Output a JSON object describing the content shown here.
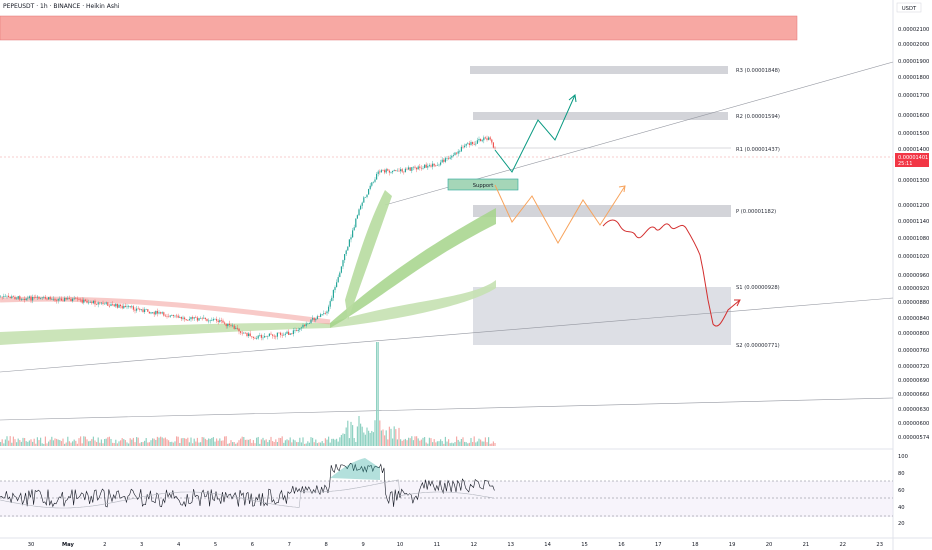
{
  "title": "PEPEUSDT · 1h · BINANCE · Heikin Ashi",
  "currency": "USDT",
  "price_tag": {
    "price": "0.00001401",
    "timer": "25:11"
  },
  "support_label": "Support",
  "colors": {
    "bull": "#26a69a",
    "bear": "#ef5350",
    "band": "#b7dba0",
    "supply": "#f7a8a3"
  },
  "chart_data": {
    "type": "candlestick",
    "y_ticks": [
      "0.00002100",
      "0.00002000",
      "0.00001900",
      "0.00001800",
      "0.00001700",
      "0.00001600",
      "0.00001500",
      "0.00001400",
      "0.00001300",
      "0.00001200",
      "0.00001140",
      "0.00001080",
      "0.00001020",
      "0.00000960",
      "0.00000920",
      "0.00000880",
      "0.00000840",
      "0.00000800",
      "0.00000760",
      "0.00000720",
      "0.00000690",
      "0.00000660",
      "0.00000630",
      "0.00000600",
      "0.00000574"
    ],
    "x_ticks": [
      "30",
      "May",
      "2",
      "3",
      "4",
      "5",
      "6",
      "7",
      "8",
      "9",
      "10",
      "11",
      "12",
      "13",
      "14",
      "15",
      "16",
      "17",
      "18",
      "19",
      "20",
      "21",
      "22",
      "23"
    ],
    "levels": [
      {
        "label": "R3 (0.00001848)",
        "price": 1.848e-05
      },
      {
        "label": "R2 (0.00001594)",
        "price": 1.594e-05
      },
      {
        "label": "R1 (0.00001437)",
        "price": 1.437e-05
      },
      {
        "label": "P (0.00001182)",
        "price": 1.182e-05
      },
      {
        "label": "S1 (0.00000928)",
        "price": 9.28e-06
      },
      {
        "label": "S2 (0.00000771)",
        "price": 7.71e-06
      }
    ],
    "rsi_ticks": [
      "100",
      "80",
      "60",
      "40",
      "20"
    ],
    "price_path": [
      {
        "date": "Apr 29",
        "price": 8.95e-06
      },
      {
        "date": "Apr 30",
        "price": 8.9e-06
      },
      {
        "date": "May 1",
        "price": 8.88e-06
      },
      {
        "date": "May 2",
        "price": 8.75e-06
      },
      {
        "date": "May 3",
        "price": 8.6e-06
      },
      {
        "date": "May 4",
        "price": 8.4e-06
      },
      {
        "date": "May 5",
        "price": 8.35e-06
      },
      {
        "date": "May 6",
        "price": 7.9e-06
      },
      {
        "date": "May 7",
        "price": 8e-06
      },
      {
        "date": "May 8",
        "price": 8.6e-06
      },
      {
        "date": "May 9",
        "price": 1.2e-05
      },
      {
        "date": "May 9.5",
        "price": 1.33e-05
      },
      {
        "date": "May 10",
        "price": 1.33e-05
      },
      {
        "date": "May 11",
        "price": 1.35e-05
      },
      {
        "date": "May 12",
        "price": 1.42e-05
      },
      {
        "date": "May 12.6",
        "price": 1.47e-05
      },
      {
        "date": "May 12.8",
        "price": 1.401e-05
      }
    ]
  }
}
